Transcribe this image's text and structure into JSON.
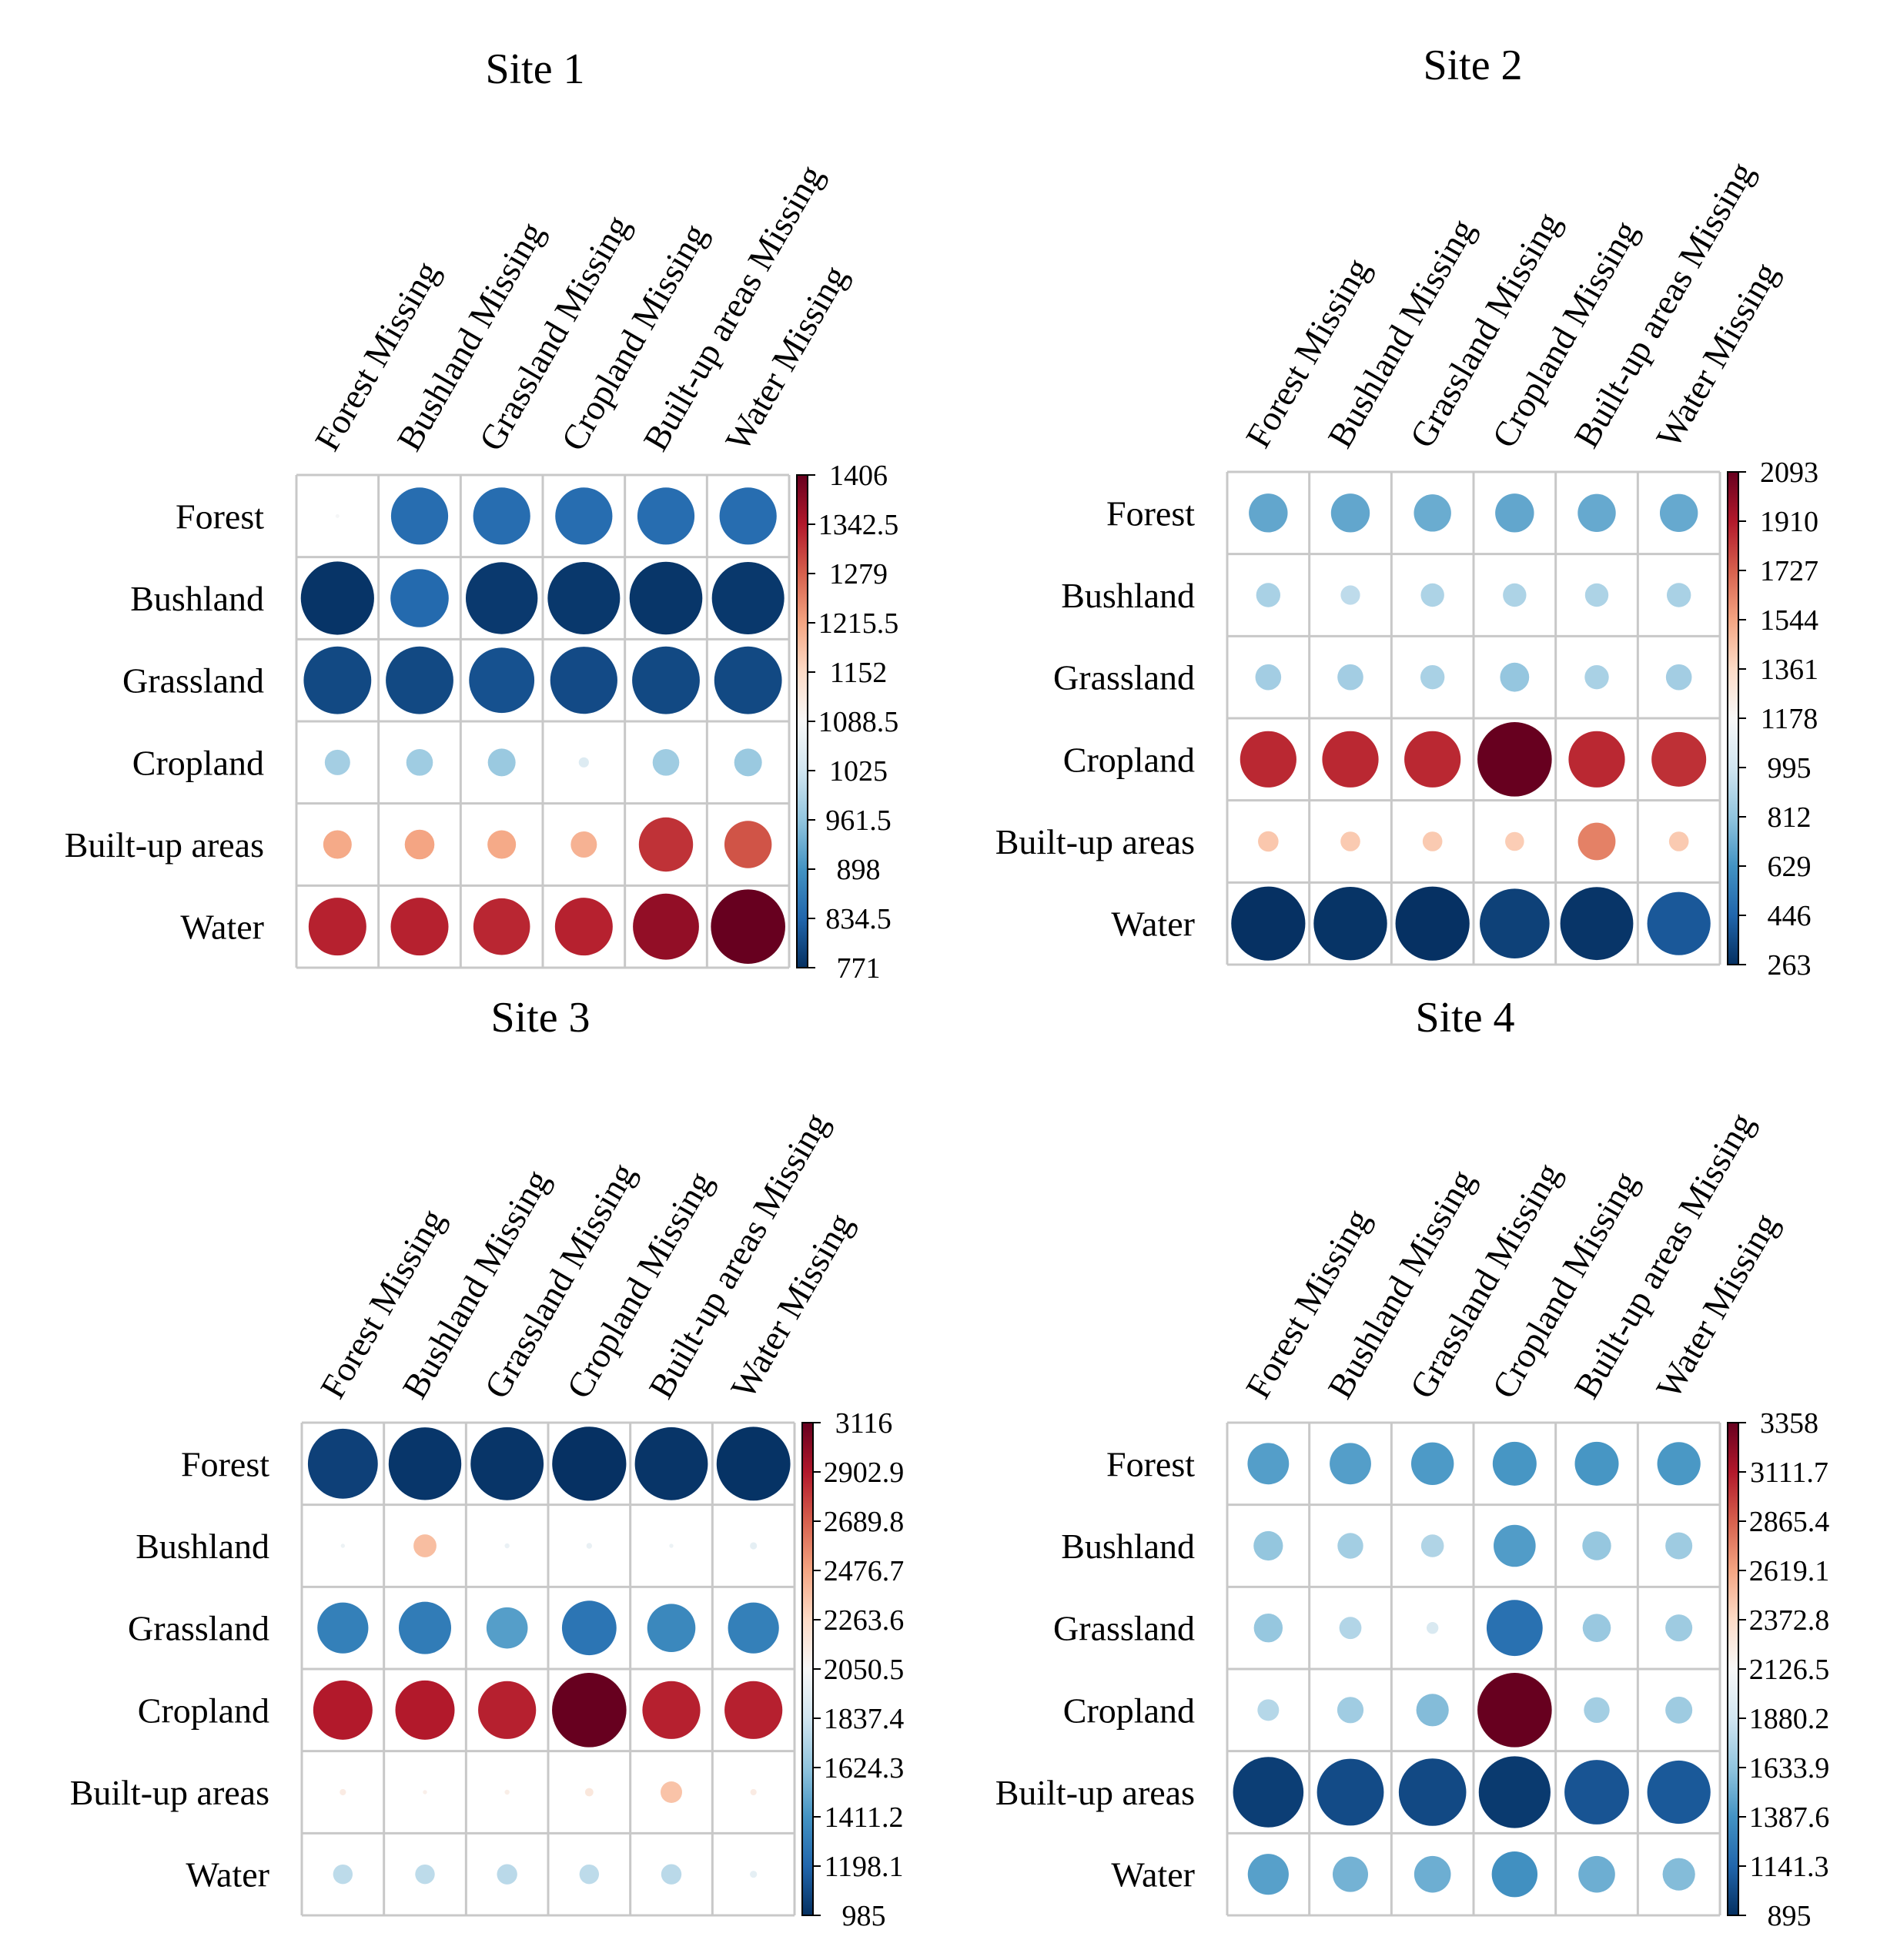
{
  "chart_data": [
    {
      "type": "heatmap",
      "title": "Site 1",
      "rows": [
        "Forest",
        "Bushland",
        "Grassland",
        "Cropland",
        "Built-up areas",
        "Water"
      ],
      "columns": [
        "Forest Missing",
        "Bushland Missing",
        "Grassland Missing",
        "Cropland Missing",
        "Built-up areas Missing",
        "Water Missing"
      ],
      "values": [
        [
          1085,
          845,
          845,
          845,
          845,
          845
        ],
        [
          776,
          840,
          782,
          780,
          778,
          780
        ],
        [
          800,
          800,
          810,
          802,
          800,
          800
        ],
        [
          980,
          975,
          970,
          1045,
          975,
          970
        ],
        [
          1210,
          1215,
          1210,
          1200,
          1320,
          1290
        ],
        [
          1335,
          1335,
          1330,
          1335,
          1370,
          1406
        ]
      ],
      "colorbar": {
        "min": 771,
        "max": 1406,
        "ticks": [
          "1406",
          "1342.5",
          "1279",
          "1215.5",
          "1152",
          "1088.5",
          "1025",
          "961.5",
          "898",
          "834.5",
          "771"
        ]
      }
    },
    {
      "type": "heatmap",
      "title": "Site 2",
      "rows": [
        "Forest",
        "Bushland",
        "Grassland",
        "Cropland",
        "Built-up areas",
        "Water"
      ],
      "columns": [
        "Forest Missing",
        "Bushland Missing",
        "Grassland Missing",
        "Cropland Missing",
        "Built-up areas Missing",
        "Water Missing"
      ],
      "values": [
        [
          700,
          700,
          720,
          700,
          710,
          710
        ],
        [
          880,
          940,
          890,
          890,
          890,
          880
        ],
        [
          860,
          860,
          880,
          820,
          880,
          860
        ],
        [
          1870,
          1870,
          1870,
          2093,
          1870,
          1850
        ],
        [
          1430,
          1420,
          1420,
          1410,
          1640,
          1420
        ],
        [
          268,
          275,
          268,
          320,
          280,
          400
        ]
      ],
      "colorbar": {
        "min": 263,
        "max": 2093,
        "ticks": [
          "2093",
          "1910",
          "1727",
          "1544",
          "1361",
          "1178",
          "995",
          "812",
          "629",
          "446",
          "263"
        ]
      }
    },
    {
      "type": "heatmap",
      "title": "Site 3",
      "rows": [
        "Forest",
        "Bushland",
        "Grassland",
        "Cropland",
        "Built-up areas",
        "Water"
      ],
      "columns": [
        "Forest Missing",
        "Bushland Missing",
        "Grassland Missing",
        "Cropland Missing",
        "Built-up areas Missing",
        "Water Missing"
      ],
      "values": [
        [
          1050,
          1010,
          1005,
          990,
          1005,
          995
        ],
        [
          1990,
          2380,
          1980,
          1970,
          1990,
          1950
        ],
        [
          1320,
          1300,
          1460,
          1270,
          1360,
          1320
        ],
        [
          2900,
          2900,
          2880,
          3116,
          2880,
          2880
        ],
        [
          2140,
          2110,
          2120,
          2170,
          2360,
          2140
        ],
        [
          1770,
          1770,
          1760,
          1770,
          1760,
          1950
        ]
      ],
      "colorbar": {
        "min": 985,
        "max": 3116,
        "ticks": [
          "3116",
          "2902.9",
          "2689.8",
          "2476.7",
          "2263.6",
          "2050.5",
          "1837.4",
          "1624.3",
          "1411.2",
          "1198.1",
          "985"
        ]
      }
    },
    {
      "type": "heatmap",
      "title": "Site 4",
      "rows": [
        "Forest",
        "Bushland",
        "Grassland",
        "Cropland",
        "Built-up areas",
        "Water"
      ],
      "columns": [
        "Forest Missing",
        "Bushland Missing",
        "Grassland Missing",
        "Cropland Missing",
        "Built-up areas Missing",
        "Water Missing"
      ],
      "values": [
        [
          1440,
          1440,
          1420,
          1400,
          1400,
          1410
        ],
        [
          1640,
          1700,
          1750,
          1430,
          1650,
          1680
        ],
        [
          1650,
          1760,
          1930,
          1200,
          1660,
          1680
        ],
        [
          1770,
          1690,
          1590,
          3358,
          1700,
          1680
        ],
        [
          960,
          1020,
          1010,
          940,
          1060,
          1080
        ],
        [
          1450,
          1540,
          1520,
          1370,
          1520,
          1590
        ]
      ],
      "colorbar": {
        "min": 895,
        "max": 3358,
        "ticks": [
          "3358",
          "3111.7",
          "2865.4",
          "2619.1",
          "2372.8",
          "2126.5",
          "1880.2",
          "1633.9",
          "1387.6",
          "1141.3",
          "895"
        ]
      }
    }
  ]
}
